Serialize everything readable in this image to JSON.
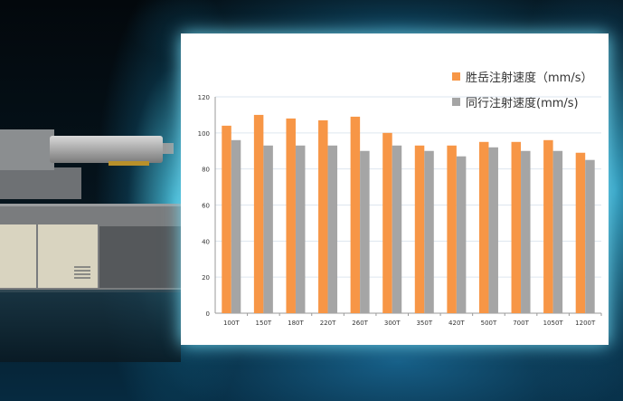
{
  "chart_data": {
    "type": "bar",
    "categories": [
      "100T",
      "150T",
      "180T",
      "220T",
      "260T",
      "300T",
      "350T",
      "420T",
      "500T",
      "700T",
      "1050T",
      "1200T"
    ],
    "series": [
      {
        "name": "胜岳注射速度（mm/s）",
        "color": "#f79646",
        "values": [
          104,
          110,
          108,
          107,
          109,
          100,
          93,
          93,
          95,
          95,
          96,
          89
        ]
      },
      {
        "name": "同行注射速度(mm/s)",
        "color": "#a5a5a5",
        "values": [
          96,
          93,
          93,
          93,
          90,
          93,
          90,
          87,
          92,
          90,
          90,
          85
        ]
      }
    ],
    "yticks": [
      0,
      20,
      40,
      60,
      80,
      100,
      120
    ],
    "ylim": [
      0,
      120
    ],
    "grid": true,
    "legend": "top-right"
  }
}
